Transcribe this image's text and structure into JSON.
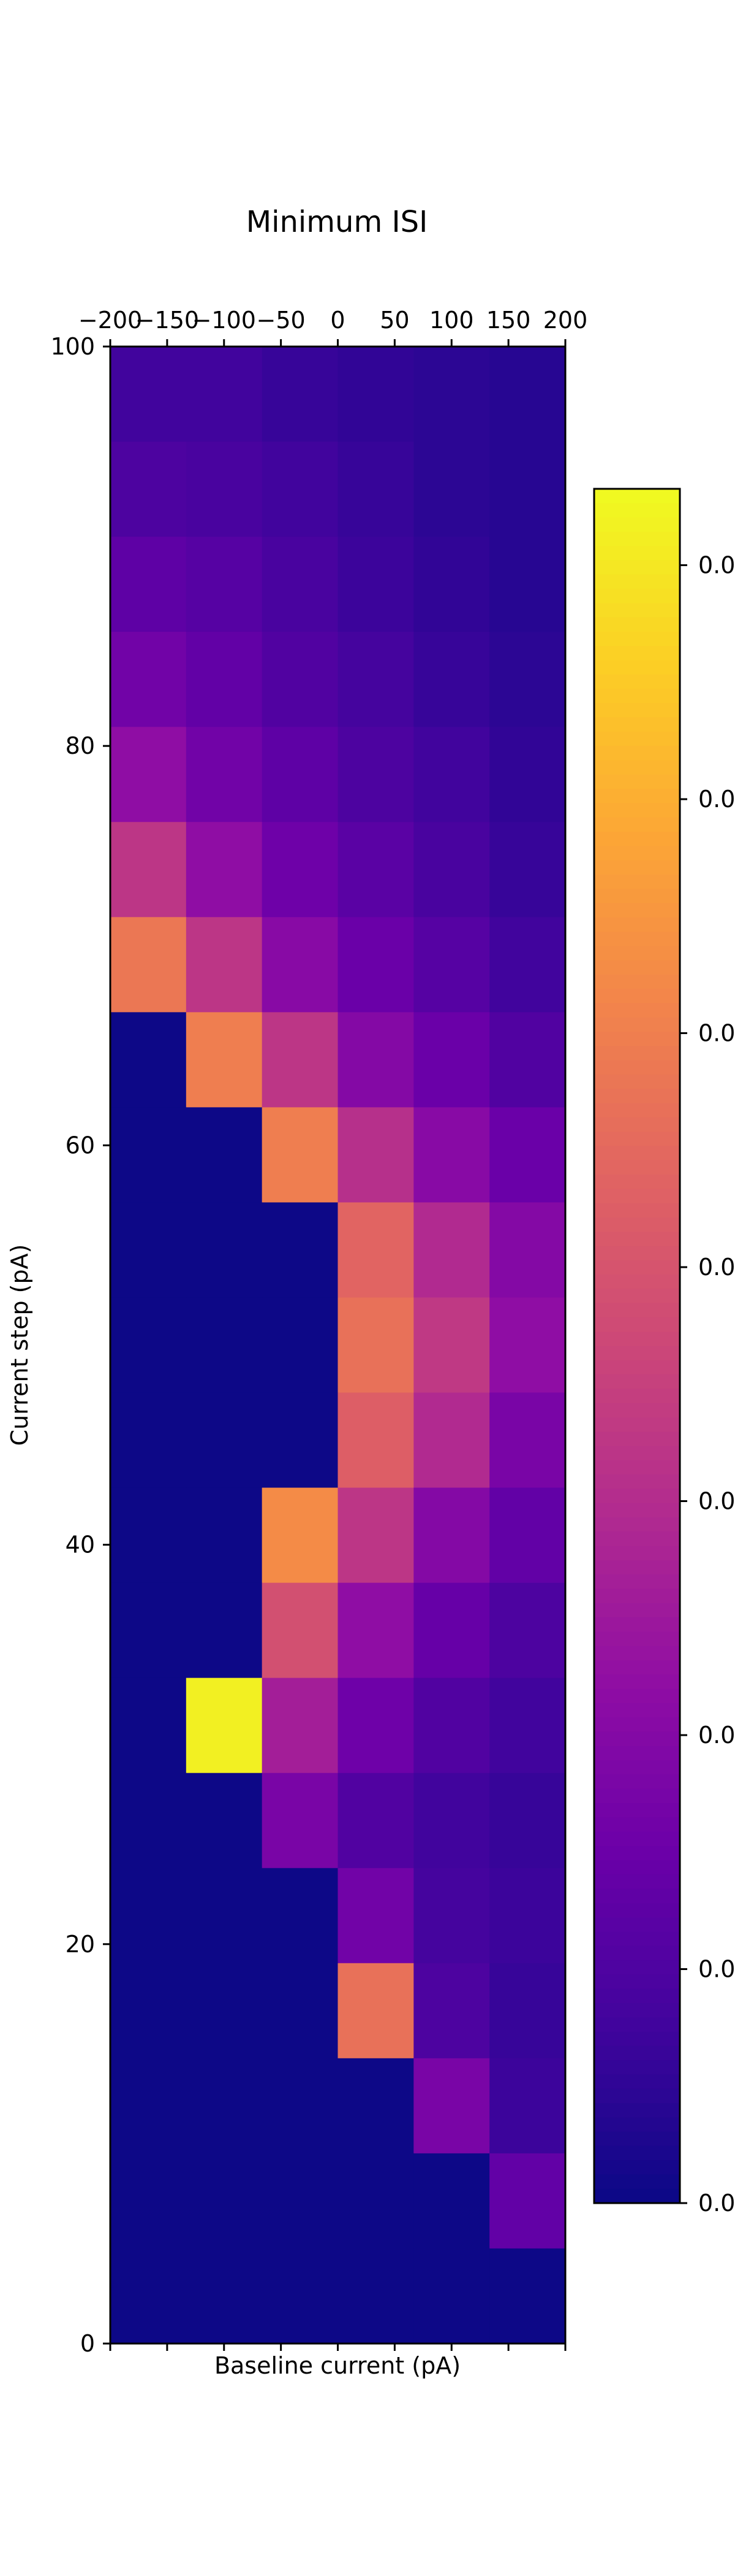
{
  "chart_data": {
    "type": "heatmap",
    "title": "Minimum ISI",
    "xlabel": "Baseline current (pA)",
    "ylabel": "Current step (pA)",
    "x_tick_labels": [
      "−200",
      "−150",
      "−100",
      "−50",
      "0",
      "50",
      "100",
      "150",
      "200"
    ],
    "y_tick_labels": [
      "0",
      "20",
      "40",
      "60",
      "80",
      "100"
    ],
    "x_ticks": [
      -200,
      -150,
      -100,
      -50,
      0,
      50,
      100,
      150,
      200
    ],
    "y_ticks": [
      0,
      20,
      40,
      60,
      80,
      100
    ],
    "xlim": [
      -200,
      200
    ],
    "ylim": [
      0,
      100
    ],
    "colormap": "plasma",
    "colorbar_tick_labels": [
      "0.0",
      "0.0",
      "0.0",
      "0.0",
      "0.0",
      "0.0",
      "0.0",
      "0.0"
    ],
    "value_range": [
      0,
      1
    ],
    "columns": 6,
    "rows": 21,
    "values_top_to_bottom": [
      [
        0.1,
        0.1,
        0.08,
        0.07,
        0.06,
        0.05
      ],
      [
        0.13,
        0.12,
        0.1,
        0.08,
        0.06,
        0.05
      ],
      [
        0.17,
        0.15,
        0.12,
        0.09,
        0.07,
        0.05
      ],
      [
        0.22,
        0.18,
        0.14,
        0.11,
        0.08,
        0.06
      ],
      [
        0.3,
        0.22,
        0.17,
        0.13,
        0.1,
        0.07
      ],
      [
        0.44,
        0.3,
        0.21,
        0.16,
        0.12,
        0.08
      ],
      [
        0.66,
        0.44,
        0.28,
        0.2,
        0.15,
        0.1
      ],
      [
        0.0,
        0.68,
        0.44,
        0.27,
        0.2,
        0.14
      ],
      [
        0.0,
        0.0,
        0.68,
        0.42,
        0.28,
        0.2
      ],
      [
        0.0,
        0.0,
        0.0,
        0.6,
        0.4,
        0.27
      ],
      [
        0.0,
        0.0,
        0.0,
        0.64,
        0.45,
        0.3
      ],
      [
        0.0,
        0.0,
        0.0,
        0.58,
        0.4,
        0.24
      ],
      [
        0.0,
        0.0,
        0.72,
        0.44,
        0.27,
        0.18
      ],
      [
        0.0,
        0.0,
        0.53,
        0.3,
        0.19,
        0.13
      ],
      [
        0.0,
        0.98,
        0.36,
        0.21,
        0.14,
        0.1
      ],
      [
        0.0,
        0.0,
        0.24,
        0.14,
        0.1,
        0.08
      ],
      [
        0.0,
        0.0,
        0.0,
        0.22,
        0.11,
        0.09
      ],
      [
        0.0,
        0.0,
        0.0,
        0.64,
        0.13,
        0.08
      ],
      [
        0.0,
        0.0,
        0.0,
        0.0,
        0.24,
        0.09
      ],
      [
        0.0,
        0.0,
        0.0,
        0.0,
        0.0,
        0.18
      ],
      [
        0.0,
        0.0,
        0.0,
        0.0,
        0.0,
        0.0
      ]
    ]
  }
}
